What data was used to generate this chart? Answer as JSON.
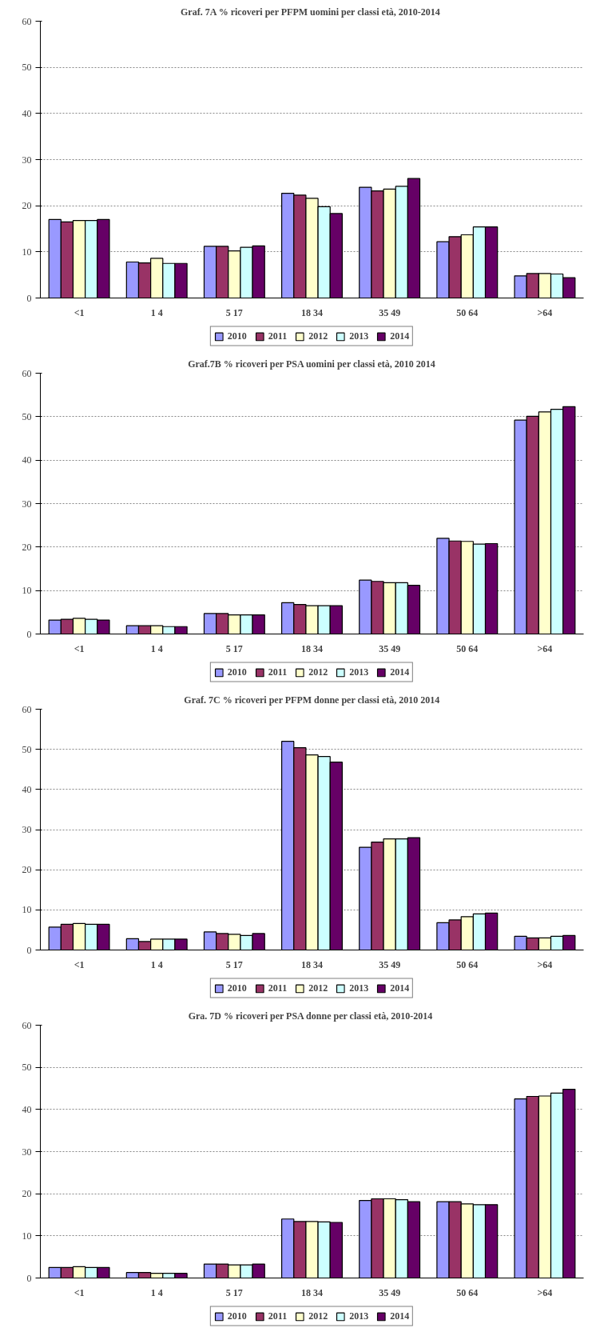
{
  "chart_data": [
    {
      "type": "bar",
      "title": "Graf. 7A %  ricoveri per PFPM uomini per classi età, 2010-2014",
      "categories": [
        "<1",
        "1 4",
        "5 17",
        "18 34",
        "35 49",
        "50 64",
        ">64"
      ],
      "ylim": [
        0,
        60
      ],
      "yticks": [
        0,
        10,
        20,
        30,
        40,
        50,
        60
      ],
      "grid": "y",
      "legend": "bottom",
      "series": [
        {
          "name": "2010",
          "color": "#9999ff",
          "values": [
            17,
            7.8,
            11.2,
            22.7,
            24,
            12.2,
            4.8
          ]
        },
        {
          "name": "2011",
          "color": "#993366",
          "values": [
            16.5,
            7.6,
            11.2,
            22.3,
            23.2,
            13.3,
            5.3
          ]
        },
        {
          "name": "2012",
          "color": "#ffffcc",
          "values": [
            16.8,
            8.6,
            10.2,
            21.6,
            23.6,
            13.7,
            5.3
          ]
        },
        {
          "name": "2013",
          "color": "#ccffff",
          "values": [
            16.8,
            7.5,
            11,
            19.8,
            24.2,
            15.4,
            5.2
          ]
        },
        {
          "name": "2014",
          "color": "#660066",
          "values": [
            17,
            7.5,
            11.3,
            18.3,
            25.9,
            15.4,
            4.4
          ]
        }
      ]
    },
    {
      "type": "bar",
      "title": "Graf.7B % ricoveri per PSA uomini per classi età, 2010 2014",
      "categories": [
        "<1",
        "1 4",
        "5 17",
        "18 34",
        "35 49",
        "50 64",
        ">64"
      ],
      "ylim": [
        0,
        60
      ],
      "yticks": [
        0,
        10,
        20,
        30,
        40,
        50,
        60
      ],
      "grid": "y",
      "legend": "bottom",
      "series": [
        {
          "name": "2010",
          "color": "#9999ff",
          "values": [
            3.2,
            1.9,
            4.7,
            7.2,
            12.4,
            22,
            49.2
          ]
        },
        {
          "name": "2011",
          "color": "#993366",
          "values": [
            3.4,
            1.9,
            4.7,
            6.8,
            12.1,
            21.4,
            50.1
          ]
        },
        {
          "name": "2012",
          "color": "#ffffcc",
          "values": [
            3.6,
            1.9,
            4.4,
            6.5,
            11.8,
            21.3,
            51.1
          ]
        },
        {
          "name": "2013",
          "color": "#ccffff",
          "values": [
            3.4,
            1.7,
            4.4,
            6.5,
            11.8,
            20.7,
            51.7
          ]
        },
        {
          "name": "2014",
          "color": "#660066",
          "values": [
            3.2,
            1.7,
            4.4,
            6.5,
            11.2,
            20.8,
            52.3
          ]
        }
      ]
    },
    {
      "type": "bar",
      "title": "Graf. 7C % ricoveri per PFPM donne per classi età, 2010 2014",
      "categories": [
        "<1",
        "1 4",
        "5 17",
        "18 34",
        "35 49",
        "50 64",
        ">64"
      ],
      "ylim": [
        0,
        60
      ],
      "yticks": [
        0,
        10,
        20,
        30,
        40,
        50,
        60
      ],
      "grid": "y",
      "legend": "bottom",
      "series": [
        {
          "name": "2010",
          "color": "#9999ff",
          "values": [
            5.7,
            2.8,
            4.5,
            52,
            25.6,
            6.8,
            3.4
          ]
        },
        {
          "name": "2011",
          "color": "#993366",
          "values": [
            6.4,
            2.1,
            4.1,
            50.4,
            26.9,
            7.5,
            3
          ]
        },
        {
          "name": "2012",
          "color": "#ffffcc",
          "values": [
            6.6,
            2.7,
            3.9,
            48.6,
            27.7,
            8.3,
            3
          ]
        },
        {
          "name": "2013",
          "color": "#ccffff",
          "values": [
            6.4,
            2.7,
            3.6,
            48.2,
            27.7,
            9,
            3.4
          ]
        },
        {
          "name": "2014",
          "color": "#660066",
          "values": [
            6.4,
            2.7,
            4.1,
            46.8,
            28,
            9.2,
            3.6
          ]
        }
      ]
    },
    {
      "type": "bar",
      "title": "Gra. 7D %  ricoveri per PSA donne per classi età, 2010-2014",
      "categories": [
        "<1",
        "1 4",
        "5 17",
        "18 34",
        "35 49",
        "50 64",
        ">64"
      ],
      "ylim": [
        0,
        60
      ],
      "yticks": [
        0,
        10,
        20,
        30,
        40,
        50,
        60
      ],
      "grid": "y",
      "legend": "bottom",
      "series": [
        {
          "name": "2010",
          "color": "#9999ff",
          "values": [
            2.5,
            1.3,
            3.3,
            14,
            18.4,
            18.1,
            42.5
          ]
        },
        {
          "name": "2011",
          "color": "#993366",
          "values": [
            2.5,
            1.3,
            3.3,
            13.4,
            18.8,
            18.1,
            43.1
          ]
        },
        {
          "name": "2012",
          "color": "#ffffcc",
          "values": [
            2.7,
            1.1,
            3.1,
            13.4,
            18.8,
            17.6,
            43.2
          ]
        },
        {
          "name": "2013",
          "color": "#ccffff",
          "values": [
            2.5,
            1.1,
            3.1,
            13.3,
            18.6,
            17.4,
            43.9
          ]
        },
        {
          "name": "2014",
          "color": "#660066",
          "values": [
            2.5,
            1.1,
            3.3,
            13.2,
            18.1,
            17.4,
            44.8
          ]
        }
      ]
    }
  ]
}
